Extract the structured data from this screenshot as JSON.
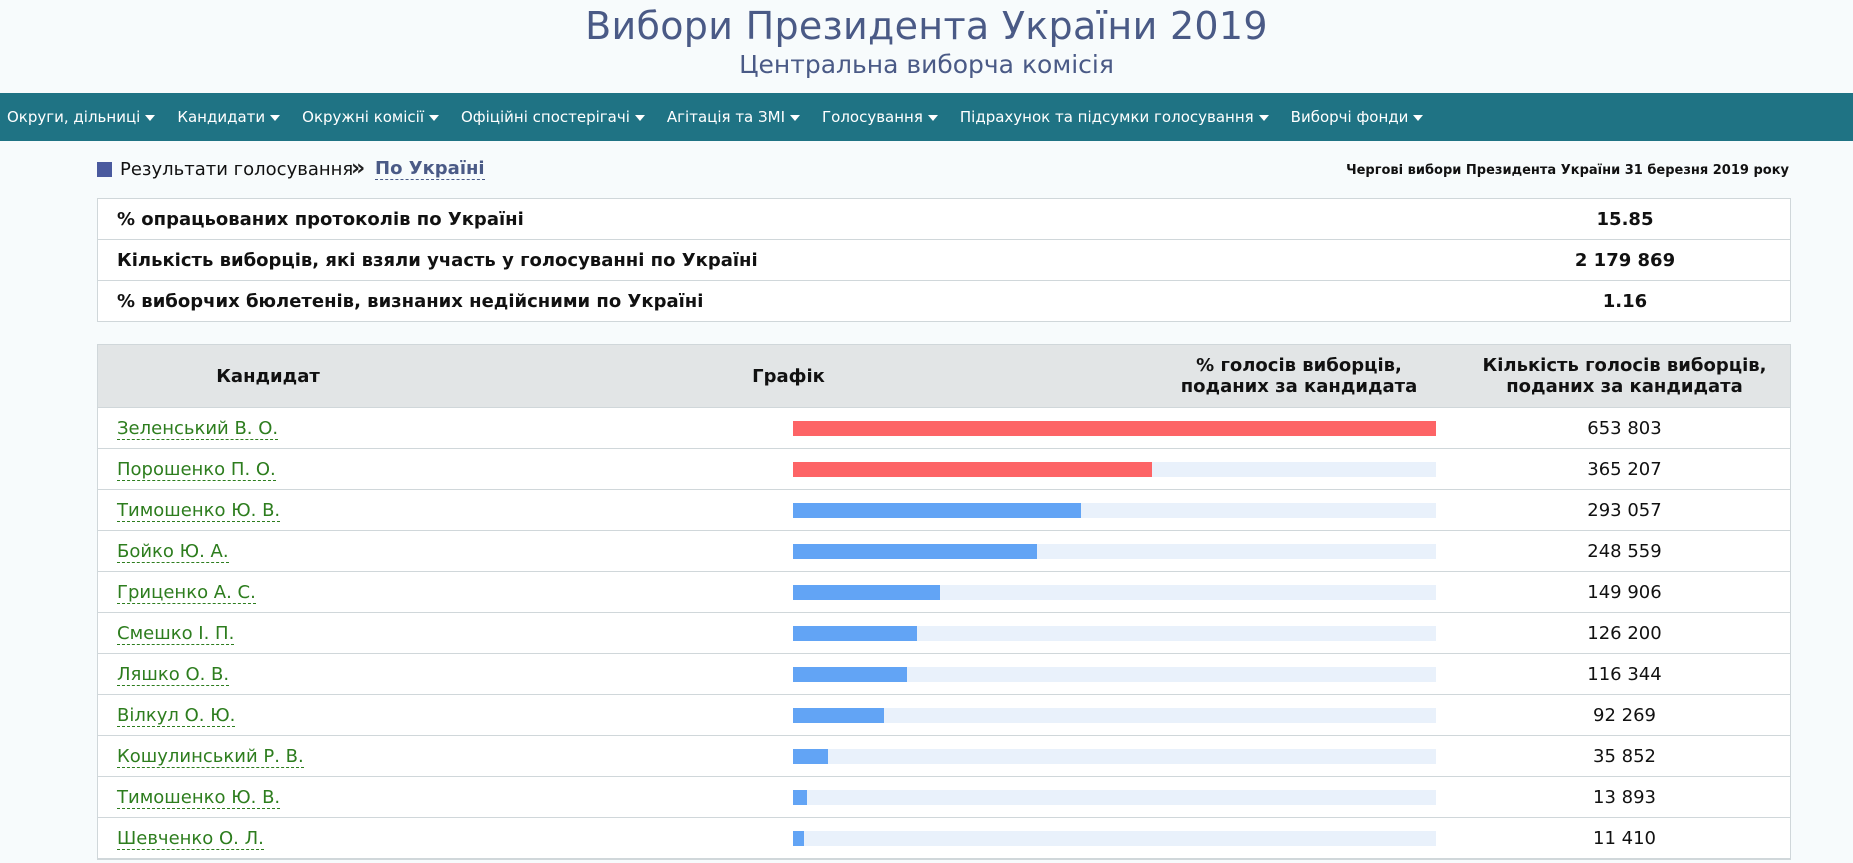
{
  "site": {
    "title": "Вибори Президента України 2019",
    "subtitle": "Центральна виборча комісія"
  },
  "nav": [
    "Округи, дільниці",
    "Кандидати",
    "Окружні комісії",
    "Офіційні спостерігачі",
    "Агітація та ЗМІ",
    "Голосування",
    "Підрахунок та підсумки голосування",
    "Виборчі фонди"
  ],
  "breadcrumb": {
    "label": "Результати голосування",
    "separator": "»",
    "link": "По Україні"
  },
  "election_title": "Чергові вибори Президента України 31 березня 2019 року",
  "stats": [
    {
      "label": "% опрацьованих протоколів по Україні",
      "value": "15.85"
    },
    {
      "label": "Кількість виборців, які взяли участь у голосуванні по Україні",
      "value": "2 179 869"
    },
    {
      "label": "% виборчих бюлетенів, визнаних недійсними по Україні",
      "value": "1.16"
    }
  ],
  "table": {
    "headers": {
      "candidate": "Кандидат",
      "chart": "Графік",
      "pct_line1": "% голосів виборців,",
      "pct_line2": "поданих за кандидата",
      "votes_line1": "Кількість голосів виборців,",
      "votes_line2": "поданих за кандидата"
    },
    "colors": {
      "top": "#fd6466",
      "other": "#62a4f5",
      "track": "#e9f1fb"
    },
    "rows": [
      {
        "name": "Зеленський В. О.",
        "pct": "29.99",
        "votes": "653 803",
        "highlight": true
      },
      {
        "name": "Порошенко П. О.",
        "pct": "16.75",
        "votes": "365 207",
        "highlight": true
      },
      {
        "name": "Тимошенко Ю. В.",
        "pct": "13.44",
        "votes": "293 057",
        "highlight": false
      },
      {
        "name": "Бойко Ю. А.",
        "pct": "11.40",
        "votes": "248 559",
        "highlight": false
      },
      {
        "name": "Гриценко А. С.",
        "pct": "6.87",
        "votes": "149 906",
        "highlight": false
      },
      {
        "name": "Смешко І. П.",
        "pct": "5.78",
        "votes": "126 200",
        "highlight": false
      },
      {
        "name": "Ляшко О. В.",
        "pct": "5.33",
        "votes": "116 344",
        "highlight": false
      },
      {
        "name": "Вілкул О. Ю.",
        "pct": "4.23",
        "votes": "92 269",
        "highlight": false
      },
      {
        "name": "Кошулинський Р. В.",
        "pct": "1.64",
        "votes": "35 852",
        "highlight": false
      },
      {
        "name": "Тимошенко Ю. В.",
        "pct": "0.63",
        "votes": "13 893",
        "highlight": false
      },
      {
        "name": "Шевченко О. Л.",
        "pct": "0.52",
        "votes": "11 410",
        "highlight": false
      }
    ]
  },
  "chart_data": {
    "type": "bar",
    "categories": [
      "Зеленський В. О.",
      "Порошенко П. О.",
      "Тимошенко Ю. В.",
      "Бойко Ю. А.",
      "Гриценко А. С.",
      "Смешко І. П.",
      "Ляшко О. В.",
      "Вілкул О. Ю.",
      "Кошулинський Р. В.",
      "Тимошенко Ю. В.",
      "Шевченко О. Л."
    ],
    "values": [
      29.99,
      16.75,
      13.44,
      11.4,
      6.87,
      5.78,
      5.33,
      4.23,
      1.64,
      0.63,
      0.52
    ],
    "title": "Графік",
    "xlabel": "",
    "ylabel": ""
  }
}
